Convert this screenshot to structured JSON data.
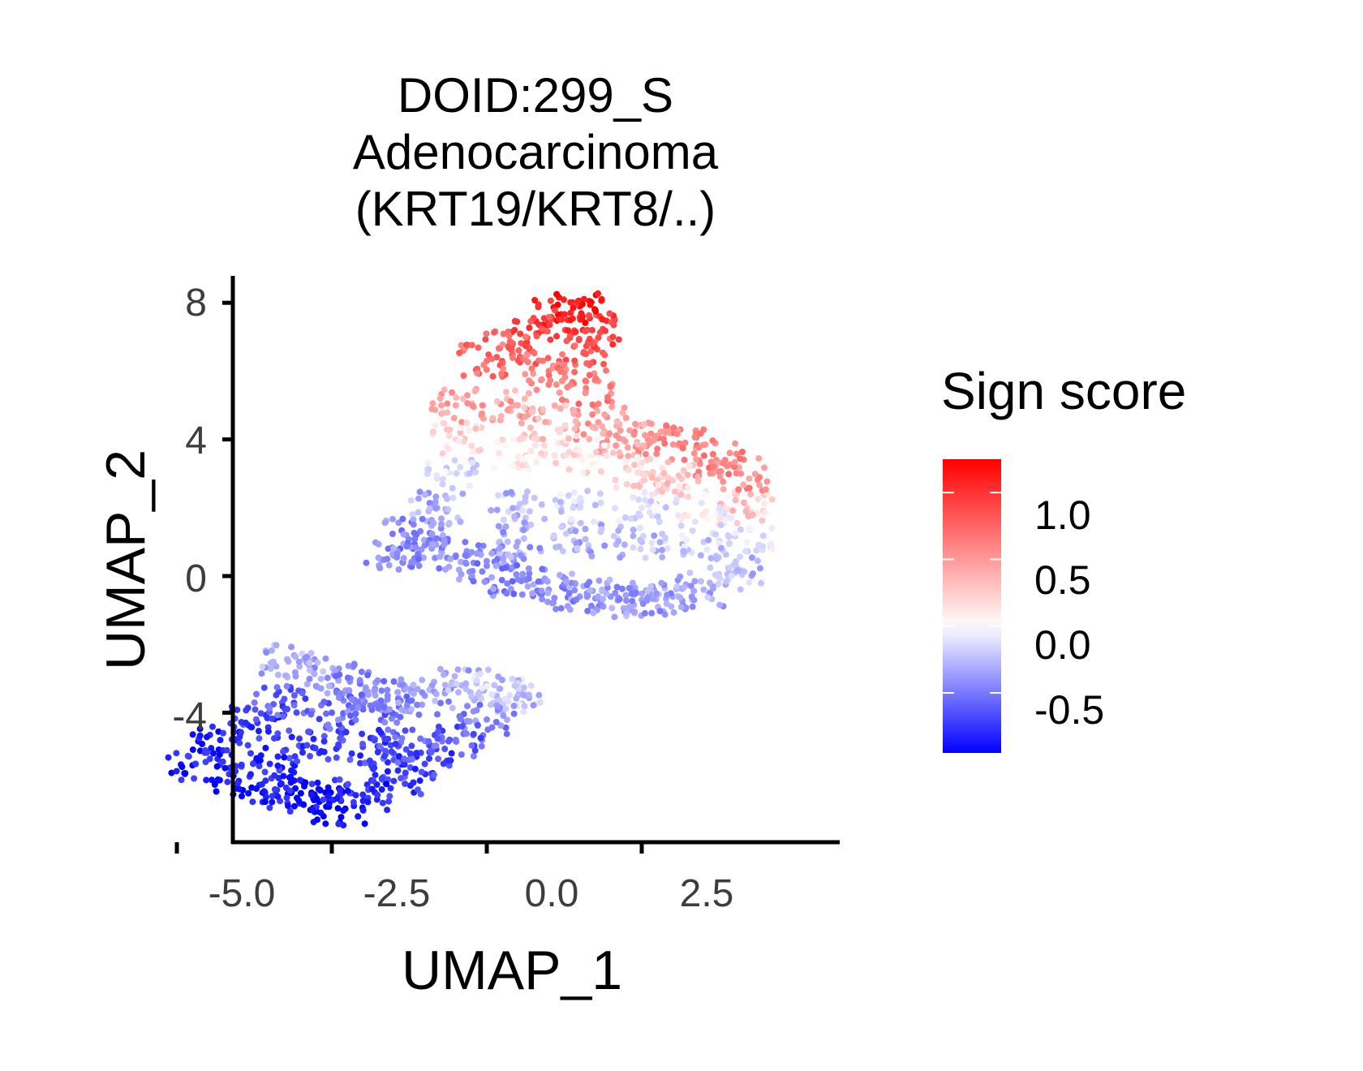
{
  "chart_data": {
    "type": "scatter",
    "title_lines": [
      "DOID:299_S",
      "Adenocarcinoma",
      "(KRT19/KRT8/..)"
    ],
    "xlabel": "UMAP_1",
    "ylabel": "UMAP_2",
    "xlim": [
      -5.2,
      4.8
    ],
    "ylim": [
      -7.5,
      8.8
    ],
    "x_ticks": [
      -5.0,
      -2.5,
      0.0,
      2.5
    ],
    "x_tick_labels": [
      "-5.0",
      "-2.5",
      "0.0",
      "2.5"
    ],
    "y_ticks": [
      8,
      4,
      0,
      -4
    ],
    "y_tick_labels": [
      "8",
      "4",
      "0",
      "-4"
    ],
    "color_legend": {
      "title": "Sign score",
      "range": [
        -0.95,
        1.25
      ],
      "colors": {
        "low": "#0000ff",
        "mid": "#ffffff",
        "high": "#ff0000"
      },
      "tick_values": [
        1.0,
        0.5,
        0.0,
        -0.5
      ],
      "tick_labels": [
        "1.0",
        "0.5",
        "0.0",
        "-0.5"
      ],
      "placement": "right"
    },
    "grid": false,
    "clusters": [
      {
        "description_id": "upper",
        "points": [
          [
            -1.5,
            0.6,
            -0.45
          ],
          [
            -1.0,
            0.9,
            -0.45
          ],
          [
            -0.5,
            0.6,
            -0.45
          ],
          [
            0.0,
            0.3,
            -0.45
          ],
          [
            0.5,
            -0.1,
            -0.45
          ],
          [
            1.0,
            -0.4,
            -0.4
          ],
          [
            1.5,
            -0.6,
            -0.4
          ],
          [
            2.0,
            -0.6,
            -0.4
          ],
          [
            2.5,
            -0.7,
            -0.35
          ],
          [
            3.0,
            -0.6,
            -0.35
          ],
          [
            3.5,
            -0.4,
            -0.3
          ],
          [
            4.0,
            0.1,
            -0.25
          ],
          [
            4.2,
            1.0,
            -0.05
          ],
          [
            4.2,
            2.0,
            0.25
          ],
          [
            4.1,
            3.0,
            0.55
          ],
          [
            3.7,
            3.4,
            0.6
          ],
          [
            3.2,
            3.9,
            0.6
          ],
          [
            2.6,
            4.0,
            0.55
          ],
          [
            2.2,
            4.0,
            0.45
          ],
          [
            1.8,
            4.5,
            0.5
          ],
          [
            1.6,
            5.5,
            0.65
          ],
          [
            1.6,
            6.5,
            0.8
          ],
          [
            1.7,
            7.2,
            0.95
          ],
          [
            1.5,
            7.9,
            1.2
          ],
          [
            1.2,
            7.6,
            1.05
          ],
          [
            0.8,
            7.1,
            0.9
          ],
          [
            0.4,
            6.7,
            0.8
          ],
          [
            0.0,
            6.3,
            0.7
          ],
          [
            -0.5,
            5.0,
            0.45
          ],
          [
            -0.5,
            4.0,
            0.2
          ],
          [
            -0.6,
            3.0,
            -0.1
          ],
          [
            -0.8,
            2.0,
            -0.3
          ],
          [
            -1.3,
            1.2,
            -0.4
          ],
          [
            0.5,
            2.0,
            -0.25
          ],
          [
            1.5,
            2.0,
            -0.15
          ],
          [
            2.5,
            2.0,
            -0.1
          ],
          [
            3.5,
            2.0,
            0.0
          ],
          [
            0.5,
            1.0,
            -0.35
          ],
          [
            1.5,
            1.0,
            -0.3
          ],
          [
            2.5,
            1.0,
            -0.25
          ],
          [
            3.5,
            1.0,
            -0.2
          ],
          [
            0.5,
            3.5,
            0.1
          ],
          [
            1.5,
            3.5,
            0.15
          ],
          [
            2.5,
            3.0,
            0.2
          ],
          [
            0.5,
            5.0,
            0.45
          ],
          [
            1.0,
            6.0,
            0.65
          ],
          [
            1.0,
            4.5,
            0.3
          ],
          [
            3.0,
            2.8,
            0.25
          ]
        ]
      },
      {
        "description_id": "lower",
        "points": [
          [
            -4.7,
            -5.5,
            -0.85
          ],
          [
            -4.3,
            -4.8,
            -0.85
          ],
          [
            -3.7,
            -4.3,
            -0.75
          ],
          [
            -3.3,
            -3.7,
            -0.6
          ],
          [
            -3.2,
            -2.5,
            -0.3
          ],
          [
            -2.8,
            -2.8,
            -0.35
          ],
          [
            -2.2,
            -3.0,
            -0.45
          ],
          [
            -1.6,
            -3.5,
            -0.45
          ],
          [
            -1.0,
            -3.5,
            -0.4
          ],
          [
            -0.4,
            -3.2,
            -0.3
          ],
          [
            0.2,
            -3.3,
            -0.2
          ],
          [
            0.5,
            -3.5,
            -0.25
          ],
          [
            0.0,
            -4.2,
            -0.45
          ],
          [
            -0.5,
            -4.8,
            -0.6
          ],
          [
            -1.0,
            -5.5,
            -0.7
          ],
          [
            -1.5,
            -6.0,
            -0.75
          ],
          [
            -2.0,
            -6.4,
            -0.8
          ],
          [
            -2.4,
            -6.8,
            -0.95
          ],
          [
            -2.8,
            -6.5,
            -0.85
          ],
          [
            -3.4,
            -6.3,
            -0.85
          ],
          [
            -4.0,
            -6.0,
            -0.85
          ],
          [
            -3.0,
            -5.0,
            -0.75
          ],
          [
            -2.0,
            -5.0,
            -0.7
          ],
          [
            -1.2,
            -4.5,
            -0.6
          ],
          [
            -3.5,
            -5.5,
            -0.8
          ],
          [
            -2.5,
            -4.0,
            -0.6
          ],
          [
            -1.5,
            -5.2,
            -0.65
          ],
          [
            -2.0,
            -3.8,
            -0.5
          ]
        ]
      }
    ]
  }
}
